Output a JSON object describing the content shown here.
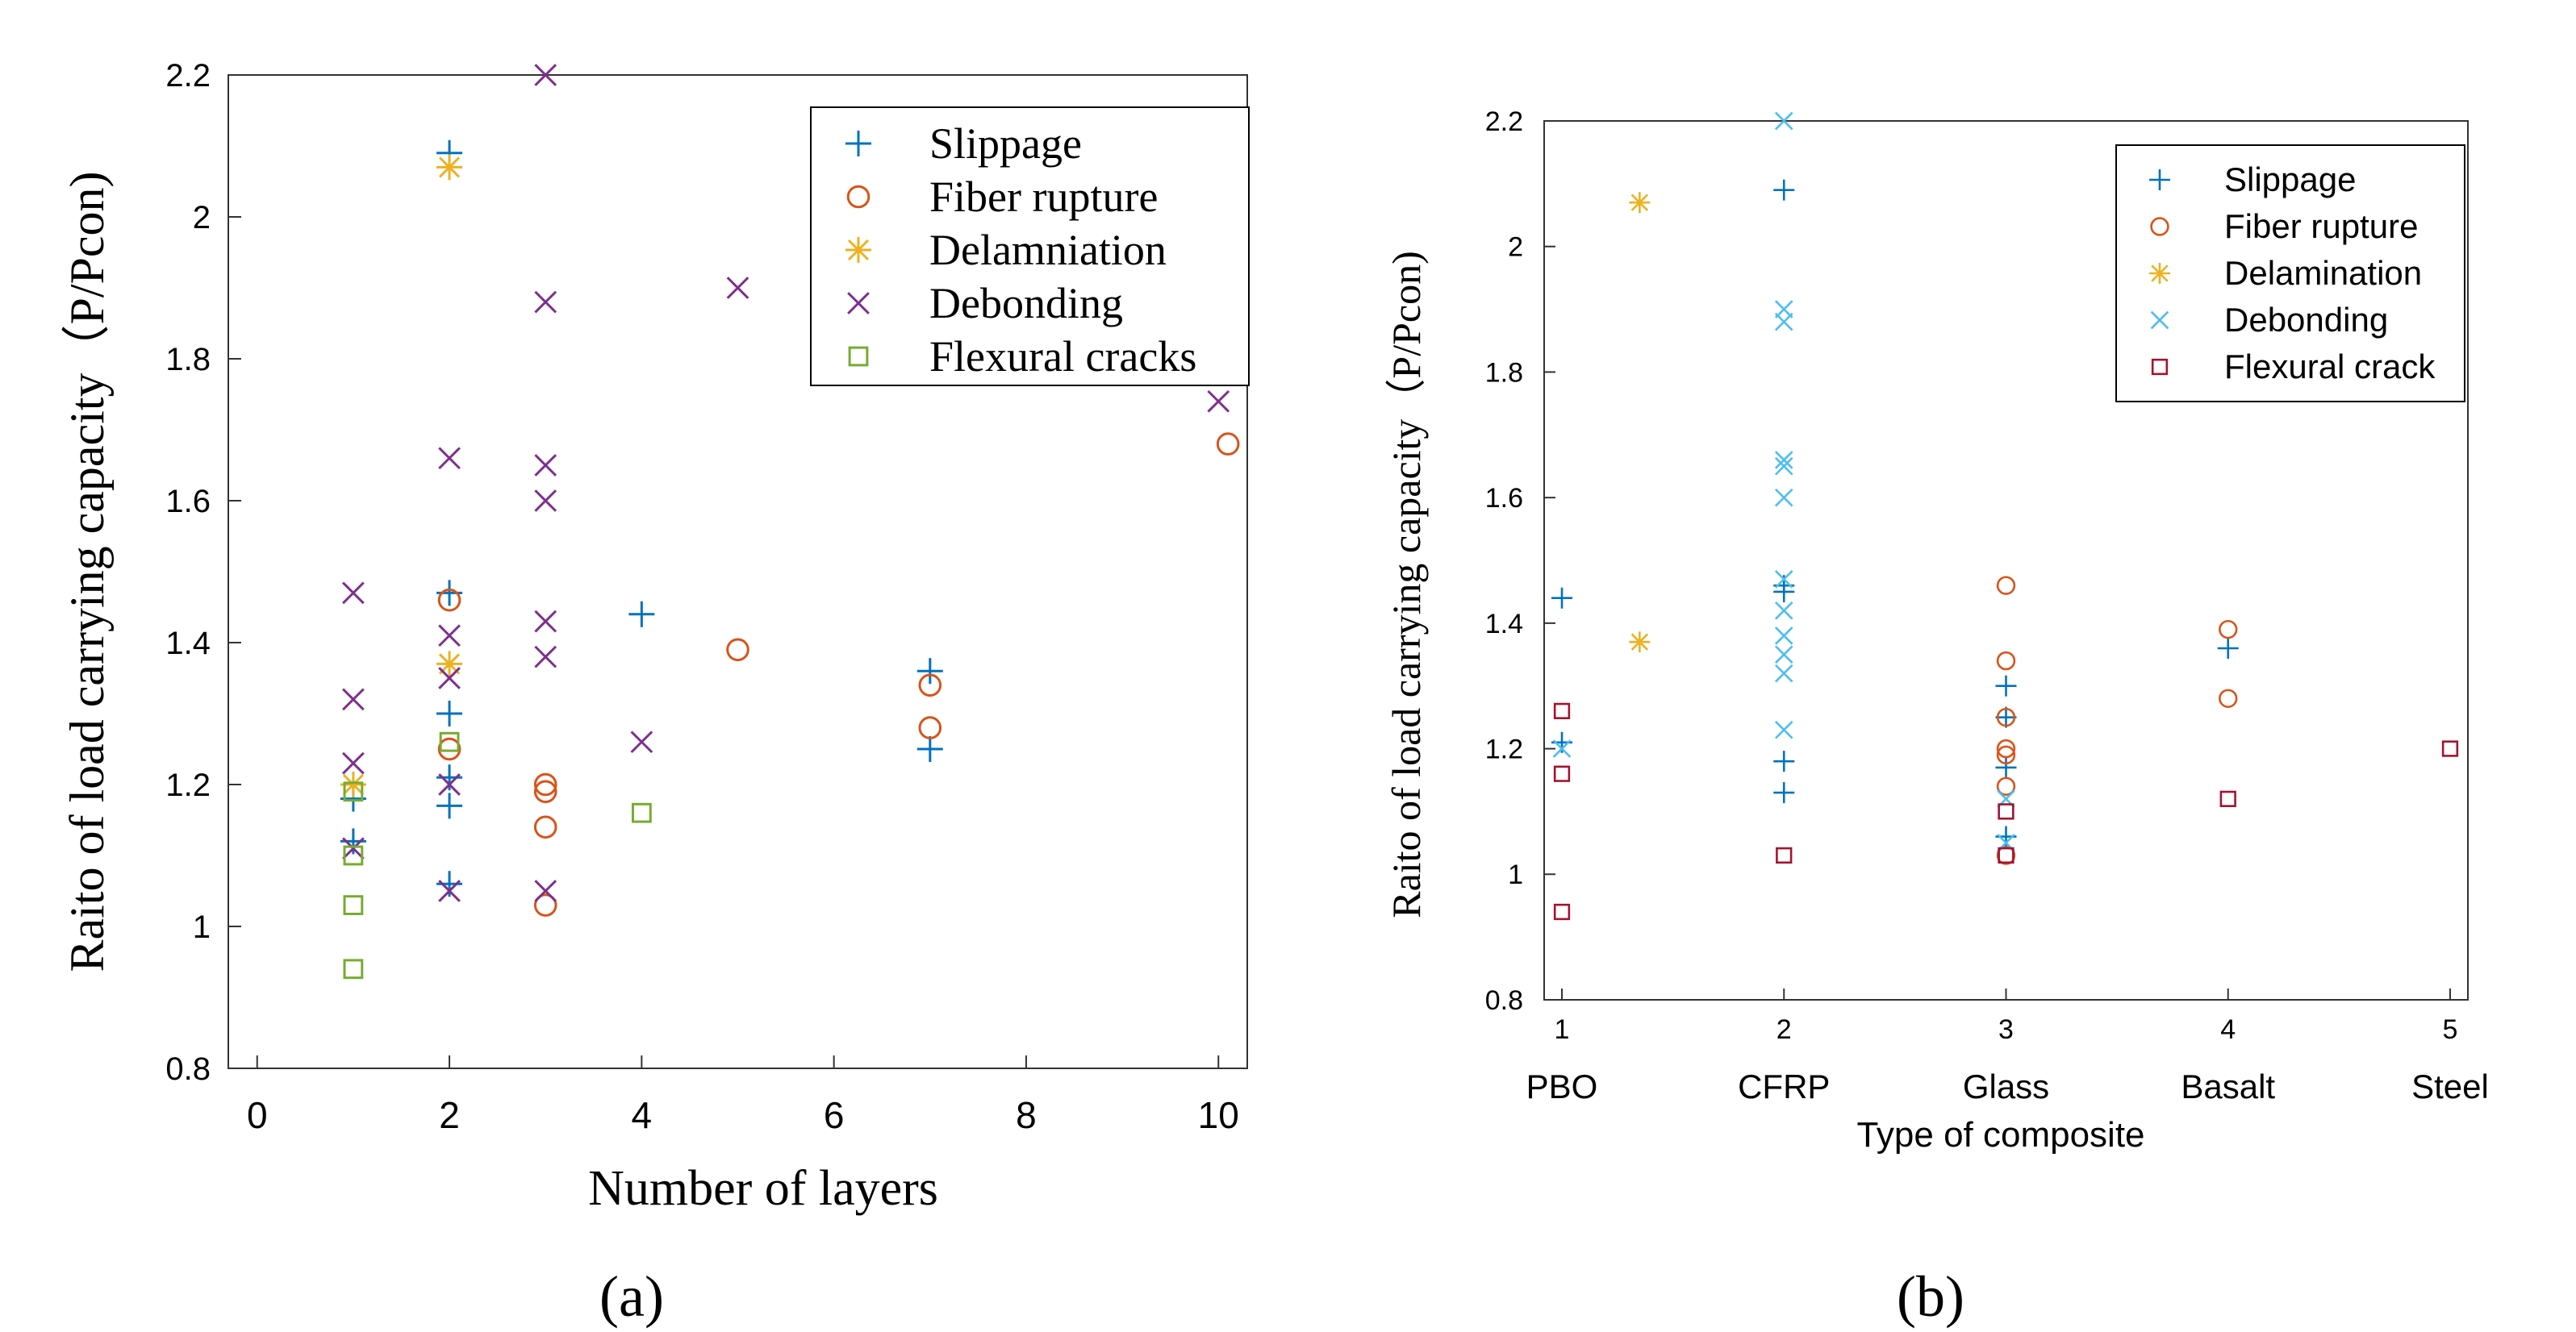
{
  "chart_data": [
    {
      "type": "scatter",
      "panel_label": "(a)",
      "xlabel": "Number of layers",
      "ylabel": "Raito of load carrying capacity（P/Pcon)",
      "xlim": [
        -0.3,
        10.3
      ],
      "ylim": [
        0.8,
        2.2
      ],
      "x_ticks": [
        0,
        2,
        4,
        6,
        8,
        10
      ],
      "x_tick_labels": [
        "0",
        "2",
        "4",
        "6",
        "8",
        "10"
      ],
      "y_ticks": [
        0.8,
        1.0,
        1.2,
        1.4,
        1.6,
        1.8,
        2.0,
        2.2
      ],
      "y_tick_labels": [
        "0.8",
        "1",
        "1.2",
        "1.4",
        "1.6",
        "1.8",
        "2",
        "2.2"
      ],
      "legend_position": "top-right",
      "series": [
        {
          "name": "Slippage",
          "marker": "plus",
          "color": "#0072BD",
          "x": [
            1,
            1,
            2,
            2,
            2,
            2,
            2,
            2,
            4,
            7,
            7
          ],
          "y": [
            1.18,
            1.12,
            2.09,
            1.47,
            1.3,
            1.21,
            1.17,
            1.06,
            1.44,
            1.36,
            1.25
          ]
        },
        {
          "name": "Fiber rupture",
          "marker": "circle",
          "color": "#D95319",
          "x": [
            2,
            2,
            3,
            3,
            3,
            3,
            5,
            7,
            7,
            10.1
          ],
          "y": [
            1.46,
            1.25,
            1.2,
            1.19,
            1.14,
            1.03,
            1.39,
            1.34,
            1.28,
            1.68
          ]
        },
        {
          "name": "Delamniation",
          "marker": "asterisk",
          "color": "#EDB120",
          "x": [
            1,
            2,
            2
          ],
          "y": [
            1.2,
            2.07,
            1.37
          ]
        },
        {
          "name": "Debonding",
          "marker": "x",
          "color": "#7E2F8E",
          "x": [
            1,
            1,
            1,
            1,
            2,
            2,
            2,
            2,
            2,
            3,
            3,
            3,
            3,
            3,
            3,
            3,
            4,
            5,
            10
          ],
          "y": [
            1.47,
            1.32,
            1.23,
            1.11,
            1.66,
            1.41,
            1.35,
            1.2,
            1.05,
            2.2,
            1.88,
            1.65,
            1.6,
            1.43,
            1.38,
            1.05,
            1.26,
            1.9,
            1.74
          ]
        },
        {
          "name": "Flexural cracks",
          "marker": "square",
          "color": "#77AC30",
          "x": [
            1,
            1,
            1,
            1,
            2,
            4
          ],
          "y": [
            1.19,
            1.1,
            1.03,
            0.94,
            1.26,
            1.16
          ]
        }
      ]
    },
    {
      "type": "scatter",
      "panel_label": "(b)",
      "xlabel": "Type of composite",
      "ylabel": "Raito of load carrying capacity（P/Pcon)",
      "xlim": [
        0.92,
        5.08
      ],
      "ylim": [
        0.8,
        2.2
      ],
      "x_ticks": [
        1,
        2,
        3,
        4,
        5
      ],
      "x_tick_labels": [
        "1",
        "2",
        "3",
        "4",
        "5"
      ],
      "categories": [
        "PBO",
        "CFRP",
        "Glass",
        "Basalt",
        "Steel"
      ],
      "y_ticks": [
        0.8,
        1.0,
        1.2,
        1.4,
        1.6,
        1.8,
        2.0,
        2.2
      ],
      "y_tick_labels": [
        "0.8",
        "1",
        "1.2",
        "1.4",
        "1.6",
        "1.8",
        "2",
        "2.2"
      ],
      "legend_position": "top-right",
      "series": [
        {
          "name": "Slippage",
          "marker": "plus",
          "color": "#0072BD",
          "x": [
            1,
            1,
            2,
            2,
            2,
            2,
            2,
            3,
            3,
            3,
            3,
            4
          ],
          "y": [
            1.44,
            1.21,
            2.09,
            1.46,
            1.45,
            1.18,
            1.13,
            1.3,
            1.25,
            1.17,
            1.06,
            1.36
          ]
        },
        {
          "name": "Fiber rupture",
          "marker": "circle",
          "color": "#D95319",
          "x": [
            3,
            3,
            3,
            3,
            3,
            3,
            3,
            4,
            4
          ],
          "y": [
            1.46,
            1.34,
            1.25,
            1.2,
            1.19,
            1.14,
            1.03,
            1.39,
            1.28
          ]
        },
        {
          "name": "Delamination",
          "marker": "asterisk",
          "color": "#EDB120",
          "x": [
            1.35,
            1.35
          ],
          "y": [
            2.07,
            1.37
          ]
        },
        {
          "name": "Debonding",
          "marker": "x",
          "color": "#4DBEEE",
          "x": [
            1,
            2,
            2,
            2,
            2,
            2,
            2,
            2,
            2,
            2,
            2,
            2,
            2,
            3,
            3
          ],
          "y": [
            1.2,
            2.2,
            1.9,
            1.88,
            1.66,
            1.65,
            1.6,
            1.47,
            1.42,
            1.38,
            1.35,
            1.32,
            1.23,
            1.12,
            1.05
          ]
        },
        {
          "name": "Flexural crack",
          "marker": "square",
          "color": "#A2142F",
          "x": [
            1,
            1,
            1,
            2,
            3,
            3,
            4,
            5
          ],
          "y": [
            1.26,
            1.16,
            0.94,
            1.03,
            1.1,
            1.03,
            1.12,
            1.2
          ]
        }
      ]
    }
  ]
}
